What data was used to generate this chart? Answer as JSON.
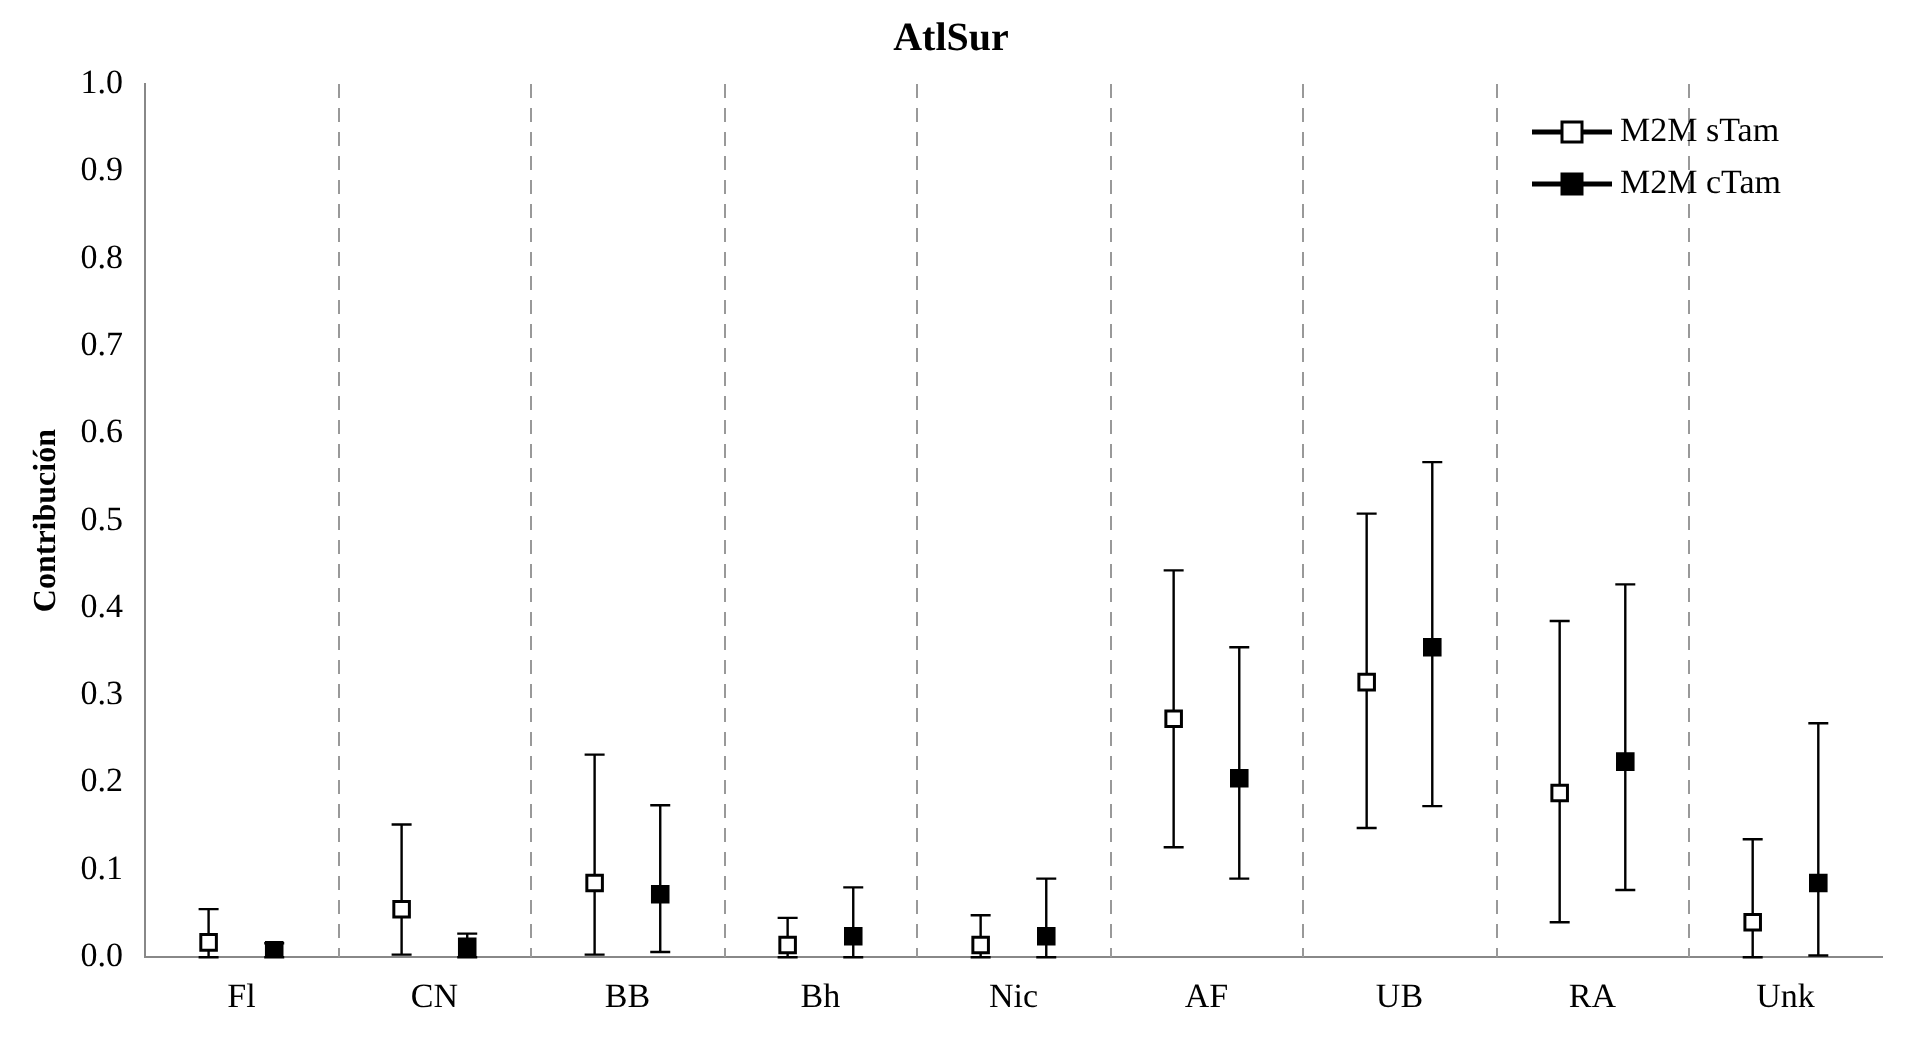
{
  "chart_data": {
    "type": "scatter",
    "title": "AtlSur",
    "ylabel": "Contribución",
    "categories": [
      "Fl",
      "CN",
      "BB",
      "Bh",
      "Nic",
      "AF",
      "UB",
      "RA",
      "Unk"
    ],
    "series": [
      {
        "name": "M2M sTam",
        "color": "#000000",
        "values": [
          0.017,
          0.055,
          0.085,
          0.014,
          0.014,
          0.273,
          0.315,
          0.188,
          0.04
        ],
        "errors": [
          [
            0,
            0.055
          ],
          [
            0.003,
            0.152
          ],
          [
            0.003,
            0.232
          ],
          [
            0,
            0.045
          ],
          [
            0,
            0.048
          ],
          [
            0.126,
            0.443
          ],
          [
            0.148,
            0.508
          ],
          [
            0.04,
            0.385
          ],
          [
            0,
            0.135
          ]
        ]
      },
      {
        "name": "M2M cTam",
        "color": "#000000",
        "values": [
          0.008,
          0.012,
          0.072,
          0.024,
          0.024,
          0.205,
          0.355,
          0.224,
          0.085
        ],
        "errors": [
          [
            0,
            0.016
          ],
          [
            0,
            0.027
          ],
          [
            0.006,
            0.174
          ],
          [
            0,
            0.08
          ],
          [
            0,
            0.09
          ],
          [
            0.09,
            0.355
          ],
          [
            0.173,
            0.567
          ],
          [
            0.077,
            0.427
          ],
          [
            0.002,
            0.268
          ]
        ]
      }
    ],
    "ylim": [
      0,
      1
    ],
    "yticks": [
      {
        "value": 0,
        "label": "0.0"
      },
      {
        "value": 0.1,
        "label": "0.1"
      },
      {
        "value": 0.2,
        "label": "0.2"
      },
      {
        "value": 0.3,
        "label": "0.3"
      },
      {
        "value": 0.4,
        "label": "0.4"
      },
      {
        "value": 0.5,
        "label": "0.5"
      },
      {
        "value": 0.6,
        "label": "0.6"
      },
      {
        "value": 0.7,
        "label": "0.7"
      },
      {
        "value": 0.8,
        "label": "0.8"
      },
      {
        "value": 0.9,
        "label": "0.9"
      },
      {
        "value": 1,
        "label": "1.0"
      }
    ],
    "marker": "square",
    "grid": "x",
    "legend": "top right"
  }
}
